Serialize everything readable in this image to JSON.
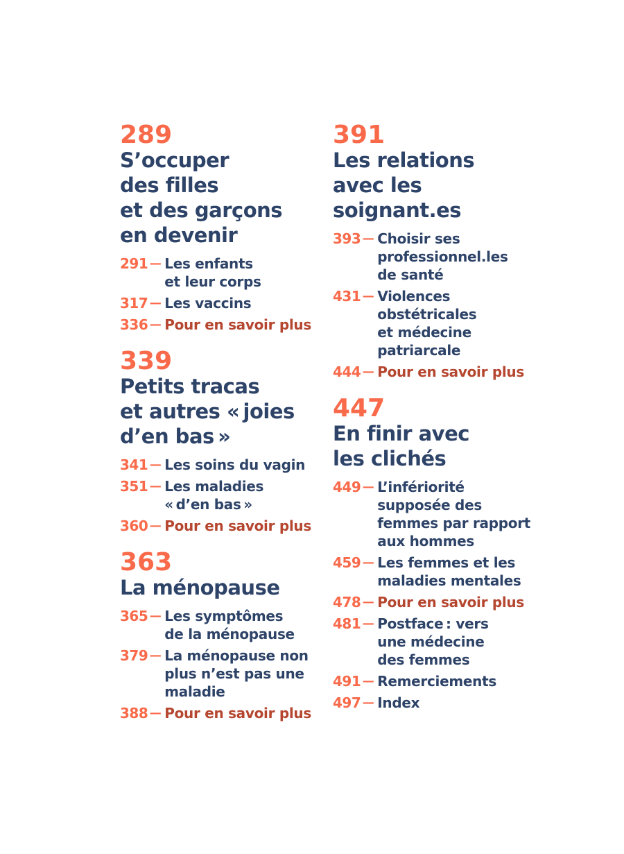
{
  "ui": {
    "separator": "—"
  },
  "colors": {
    "background": "#FFFFFF",
    "chapter_number": "#F96A4B",
    "entry_number": "#F96A4B",
    "title_text": "#2E4368",
    "entry_text": "#2E4368",
    "more_info_text": "#B5462F"
  },
  "toc": {
    "left": [
      {
        "number": "289",
        "title": "S’occuper\ndes filles\net des garçons\nen devenir",
        "entries": [
          {
            "page": "291",
            "label": "Les enfants\net leur corps"
          },
          {
            "page": "317",
            "label": "Les vaccins"
          },
          {
            "page": "336",
            "label": "Pour en savoir plus"
          }
        ]
      },
      {
        "number": "339",
        "title": "Petits tracas\net autres « joies\nd’en bas »",
        "entries": [
          {
            "page": "341",
            "label": "Les soins du vagin"
          },
          {
            "page": "351",
            "label": "Les maladies\n« d’en bas »"
          },
          {
            "page": "360",
            "label": "Pour en savoir plus"
          }
        ]
      },
      {
        "number": "363",
        "title": "La ménopause",
        "entries": [
          {
            "page": "365",
            "label": "Les symptômes\nde la ménopause"
          },
          {
            "page": "379",
            "label": "La ménopause non\nplus n’est pas une\nmaladie"
          },
          {
            "page": "388",
            "label": "Pour en savoir plus"
          }
        ]
      }
    ],
    "right": [
      {
        "number": "391",
        "title": "Les relations\navec les\nsoignant.es",
        "entries": [
          {
            "page": "393",
            "label": "Choisir ses\nprofessionnel.les\nde santé"
          },
          {
            "page": "431",
            "label": "Violences\nobstétricales\net médecine\npatriarcale"
          },
          {
            "page": "444",
            "label": "Pour en savoir plus"
          }
        ]
      },
      {
        "number": "447",
        "title": "En finir avec\nles clichés",
        "entries": [
          {
            "page": "449",
            "label": "L’infériorité\nsupposée des\nfemmes par rapport\naux hommes"
          },
          {
            "page": "459",
            "label": "Les femmes et les\nmaladies mentales"
          },
          {
            "page": "478",
            "label": "Pour en savoir plus"
          },
          {
            "page": "481",
            "label": "Postface : vers\nune médecine\ndes femmes"
          },
          {
            "page": "491",
            "label": "Remerciements"
          },
          {
            "page": "497",
            "label": "Index"
          }
        ]
      }
    ]
  }
}
